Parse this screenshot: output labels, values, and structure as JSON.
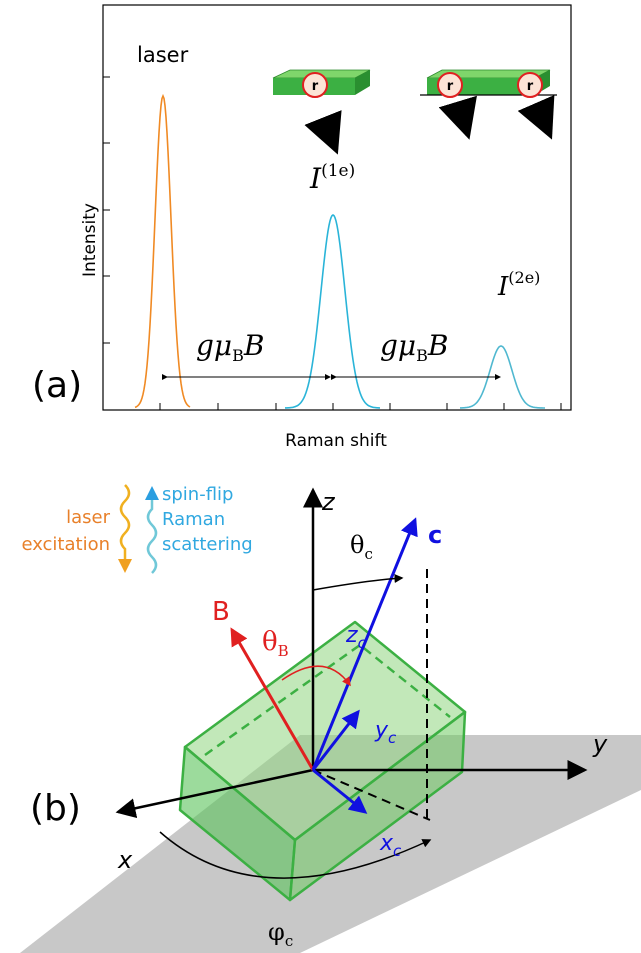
{
  "panel_a": {
    "label": "(a)",
    "laser": "laser",
    "y_axis": "Intensity",
    "x_axis": "Raman shift",
    "peak1": {
      "main": "I",
      "sup": "(1e)"
    },
    "peak2": {
      "main": "I",
      "sup": "(2e)"
    },
    "gap1": {
      "pre": "gμ",
      "sub": "B",
      "post": "B"
    },
    "gap2": {
      "pre": "gμ",
      "sub": "B",
      "post": "B"
    },
    "spins": [
      "r",
      "r",
      "r"
    ]
  },
  "panel_b": {
    "label": "(b)",
    "legend_laser": [
      "laser",
      "excitation"
    ],
    "legend_raman": [
      "spin-flip",
      "Raman",
      "scattering"
    ],
    "axis_z": "z",
    "axis_y": "y",
    "axis_x": "x",
    "vec_c": "c",
    "vec_B": "B",
    "theta_c": {
      "main": "θ",
      "sub": "c"
    },
    "theta_B": {
      "main": "θ",
      "sub": "B"
    },
    "z_c": {
      "main": "z",
      "sub": "c"
    },
    "y_c": {
      "main": "y",
      "sub": "c"
    },
    "x_c": {
      "main": "x",
      "sub": "c"
    },
    "phi_c": {
      "main": "φ",
      "sub": "c"
    }
  }
}
